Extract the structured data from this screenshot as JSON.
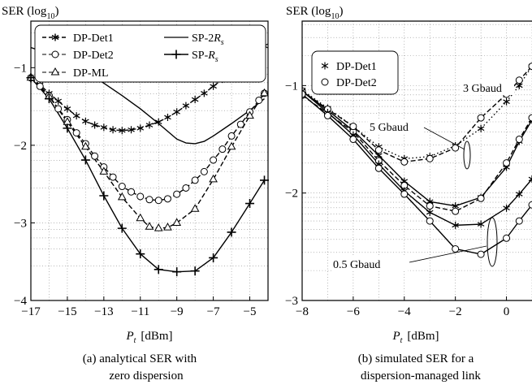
{
  "chart_data": [
    {
      "type": "line",
      "ylabel_main": "SER (log",
      "ylabel_sub": "10",
      "ylabel_close": ")",
      "xlabel_main": "P",
      "xlabel_sub": "t",
      "xlabel_unit": "[dBm]",
      "caption_line1": "(a) analytical SER with",
      "caption_line2": "zero dispersion",
      "xlim": [
        -17,
        -4
      ],
      "ylim": [
        -4,
        -0.4
      ],
      "xticks": [
        -17,
        -15,
        -13,
        -11,
        -9,
        -7,
        -5
      ],
      "xtick_labels": [
        "−17",
        "−15",
        "−13",
        "−11",
        "−9",
        "−7",
        "−5"
      ],
      "yticks": [
        -4,
        -3,
        -2,
        -1
      ],
      "ytick_labels": [
        "−4",
        "−3",
        "−2",
        "−1"
      ],
      "grid": "dotted",
      "legend_position": "top",
      "legend_labels": {
        "det1": "DP-Det1",
        "det2": "DP-Det2",
        "ml": "DP-ML",
        "sp2rs_main": "SP-2",
        "sp2rs_var": "R",
        "sp2rs_sub": "s",
        "sprs_main": "SP-",
        "sprs_var": "R",
        "sprs_sub": "s"
      },
      "series": [
        {
          "key": "det1",
          "style": "dashed",
          "marker": "star",
          "points": [
            [
              -17,
              -1.13
            ],
            [
              -16.5,
              -1.22
            ],
            [
              -16,
              -1.33
            ],
            [
              -15.5,
              -1.43
            ],
            [
              -15,
              -1.53
            ],
            [
              -14.5,
              -1.62
            ],
            [
              -14,
              -1.69
            ],
            [
              -13.5,
              -1.74
            ],
            [
              -13,
              -1.77
            ],
            [
              -12.5,
              -1.8
            ],
            [
              -12,
              -1.81
            ],
            [
              -11.5,
              -1.8
            ],
            [
              -11,
              -1.78
            ],
            [
              -10.5,
              -1.74
            ],
            [
              -10,
              -1.7
            ],
            [
              -9.5,
              -1.64
            ],
            [
              -9,
              -1.57
            ],
            [
              -8.5,
              -1.49
            ],
            [
              -8,
              -1.41
            ],
            [
              -7.5,
              -1.33
            ],
            [
              -7,
              -1.24
            ],
            [
              -6.5,
              -1.15
            ],
            [
              -6,
              -1.06
            ],
            [
              -5.5,
              -0.97
            ],
            [
              -5,
              -0.87
            ],
            [
              -4.5,
              -0.78
            ],
            [
              -4.2,
              -0.72
            ]
          ]
        },
        {
          "key": "det2",
          "style": "dashed",
          "marker": "circle",
          "points": [
            [
              -17,
              -1.13
            ],
            [
              -16.5,
              -1.24
            ],
            [
              -16,
              -1.36
            ],
            [
              -15.5,
              -1.53
            ],
            [
              -15,
              -1.67
            ],
            [
              -14.5,
              -1.84
            ],
            [
              -14,
              -1.98
            ],
            [
              -13.5,
              -2.14
            ],
            [
              -13,
              -2.28
            ],
            [
              -12.5,
              -2.41
            ],
            [
              -12,
              -2.53
            ],
            [
              -11.5,
              -2.6
            ],
            [
              -11,
              -2.66
            ],
            [
              -10.5,
              -2.7
            ],
            [
              -10,
              -2.71
            ],
            [
              -9.5,
              -2.69
            ],
            [
              -9,
              -2.63
            ],
            [
              -8.5,
              -2.55
            ],
            [
              -8,
              -2.45
            ],
            [
              -7.5,
              -2.34
            ],
            [
              -7,
              -2.19
            ],
            [
              -6.5,
              -2.05
            ],
            [
              -6,
              -1.88
            ],
            [
              -5.5,
              -1.73
            ],
            [
              -5,
              -1.57
            ],
            [
              -4.5,
              -1.42
            ],
            [
              -4.2,
              -1.33
            ]
          ]
        },
        {
          "key": "ml",
          "style": "dashed",
          "marker": "triangle",
          "points": [
            [
              -17,
              -1.13
            ],
            [
              -16,
              -1.37
            ],
            [
              -15,
              -1.7
            ],
            [
              -14,
              -2.02
            ],
            [
              -13,
              -2.34
            ],
            [
              -12,
              -2.67
            ],
            [
              -11,
              -2.94
            ],
            [
              -10.5,
              -3.05
            ],
            [
              -10,
              -3.07
            ],
            [
              -9.5,
              -3.06
            ],
            [
              -9,
              -3.0
            ],
            [
              -8,
              -2.82
            ],
            [
              -7,
              -2.44
            ],
            [
              -6,
              -2.02
            ],
            [
              -5,
              -1.62
            ],
            [
              -4.2,
              -1.33
            ]
          ]
        },
        {
          "key": "sp2rs",
          "style": "solid",
          "marker": "none",
          "points": [
            [
              -17.8,
              -0.68
            ],
            [
              -17,
              -0.74
            ],
            [
              -16,
              -0.82
            ],
            [
              -15,
              -0.92
            ],
            [
              -14,
              -1.05
            ],
            [
              -13,
              -1.2
            ],
            [
              -12,
              -1.36
            ],
            [
              -11,
              -1.53
            ],
            [
              -10,
              -1.72
            ],
            [
              -9,
              -1.92
            ],
            [
              -8.5,
              -1.97
            ],
            [
              -8,
              -1.98
            ],
            [
              -7.5,
              -1.95
            ],
            [
              -7,
              -1.88
            ],
            [
              -6,
              -1.72
            ],
            [
              -5,
              -1.55
            ],
            [
              -4.2,
              -1.4
            ]
          ]
        },
        {
          "key": "sprs",
          "style": "solid",
          "marker": "plus",
          "points": [
            [
              -17,
              -1.13
            ],
            [
              -16,
              -1.4
            ],
            [
              -15,
              -1.78
            ],
            [
              -14,
              -2.19
            ],
            [
              -13,
              -2.65
            ],
            [
              -12,
              -3.07
            ],
            [
              -11,
              -3.4
            ],
            [
              -10,
              -3.6
            ],
            [
              -9,
              -3.63
            ],
            [
              -8,
              -3.62
            ],
            [
              -7,
              -3.45
            ],
            [
              -6,
              -3.12
            ],
            [
              -5,
              -2.75
            ],
            [
              -4.2,
              -2.45
            ]
          ]
        }
      ]
    },
    {
      "type": "line",
      "ylabel_main": "SER (log",
      "ylabel_sub": "10",
      "ylabel_close": ")",
      "xlabel_main": "P",
      "xlabel_sub": "t",
      "xlabel_unit": "[dBm]",
      "caption_line1": "(b) simulated SER for a",
      "caption_line2": "dispersion-managed link",
      "xlim": [
        -8,
        1
      ],
      "ylim": [
        -3,
        -0.4
      ],
      "xticks": [
        -8,
        -6,
        -4,
        -2,
        0
      ],
      "xtick_labels": [
        "−8",
        "−6",
        "−4",
        "−2",
        "0"
      ],
      "yticks": [
        -3,
        -2,
        -1
      ],
      "ytick_labels": [
        "−3",
        "−2",
        "−1"
      ],
      "grid": "dotted",
      "legend_position": "top-left",
      "legend_labels": {
        "det1": "DP-Det1",
        "det2": "DP-Det2"
      },
      "annotations": {
        "a3": "3 Gbaud",
        "a5": "5 Gbaud",
        "a05": "0.5 Gbaud"
      },
      "series": [
        {
          "key": "g3_det1",
          "style": "solid",
          "marker": "star",
          "points": [
            [
              -8,
              -1.05
            ],
            [
              -7,
              -1.23
            ],
            [
              -6,
              -1.42
            ],
            [
              -5,
              -1.65
            ],
            [
              -4,
              -1.89
            ],
            [
              -3,
              -2.08
            ],
            [
              -2,
              -2.12
            ],
            [
              -1,
              -2.04
            ],
            [
              0,
              -1.76
            ],
            [
              0.5,
              -1.52
            ],
            [
              1,
              -1.32
            ]
          ]
        },
        {
          "key": "g3_det2",
          "style": "dashed",
          "marker": "circle",
          "points": [
            [
              -8,
              -1.09
            ],
            [
              -7,
              -1.26
            ],
            [
              -6,
              -1.43
            ],
            [
              -5,
              -1.7
            ],
            [
              -4,
              -1.93
            ],
            [
              -3,
              -2.12
            ],
            [
              -2,
              -2.17
            ],
            [
              -1,
              -2.05
            ],
            [
              0,
              -1.72
            ],
            [
              0.5,
              -1.5
            ],
            [
              1,
              -1.3
            ]
          ]
        },
        {
          "key": "g5_det1",
          "style": "dotted",
          "marker": "star",
          "points": [
            [
              -8,
              -1.04
            ],
            [
              -7,
              -1.21
            ],
            [
              -6,
              -1.38
            ],
            [
              -5,
              -1.57
            ],
            [
              -4,
              -1.68
            ],
            [
              -3,
              -1.66
            ],
            [
              -2,
              -1.56
            ],
            [
              -1,
              -1.4
            ],
            [
              0,
              -1.15
            ],
            [
              0.5,
              -1.0
            ],
            [
              1,
              -0.82
            ]
          ]
        },
        {
          "key": "g5_det2",
          "style": "dashed",
          "marker": "circle",
          "points": [
            [
              -8,
              -1.05
            ],
            [
              -7,
              -1.22
            ],
            [
              -6,
              -1.38
            ],
            [
              -5,
              -1.6
            ],
            [
              -4,
              -1.71
            ],
            [
              -3,
              -1.68
            ],
            [
              -2,
              -1.58
            ],
            [
              -1,
              -1.3
            ],
            [
              0,
              -1.08
            ],
            [
              0.5,
              -0.95
            ],
            [
              1,
              -0.82
            ]
          ]
        },
        {
          "key": "g05_det1",
          "style": "solid",
          "marker": "star",
          "points": [
            [
              -8,
              -1.05
            ],
            [
              -7,
              -1.25
            ],
            [
              -6,
              -1.46
            ],
            [
              -5,
              -1.73
            ],
            [
              -4,
              -1.98
            ],
            [
              -3,
              -2.18
            ],
            [
              -2,
              -2.3
            ],
            [
              -1,
              -2.29
            ],
            [
              0,
              -2.14
            ],
            [
              0.5,
              -2.01
            ],
            [
              1,
              -1.87
            ]
          ]
        },
        {
          "key": "g05_det2",
          "style": "solid",
          "marker": "circle",
          "points": [
            [
              -8,
              -1.08
            ],
            [
              -7,
              -1.28
            ],
            [
              -6,
              -1.5
            ],
            [
              -5,
              -1.77
            ],
            [
              -4,
              -2.01
            ],
            [
              -3,
              -2.26
            ],
            [
              -2,
              -2.52
            ],
            [
              -1,
              -2.57
            ],
            [
              0,
              -2.42
            ],
            [
              0.5,
              -2.26
            ],
            [
              1,
              -2.11
            ]
          ]
        }
      ]
    }
  ]
}
